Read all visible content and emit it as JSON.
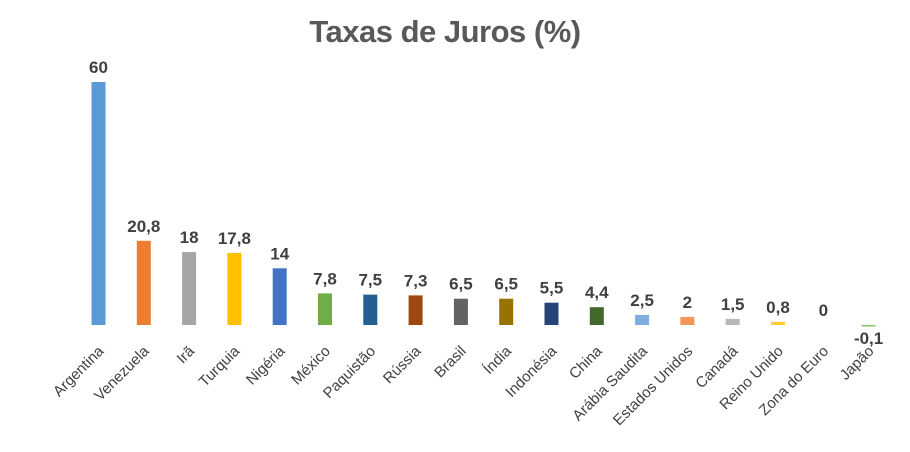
{
  "chart_data": {
    "type": "bar",
    "title": "Taxas de Juros  (%)",
    "xlabel": "",
    "ylabel": "",
    "categories": [
      "Argentina",
      "Venezuela",
      "Irã",
      "Turquia",
      "Nigéria",
      "México",
      "Paquistão",
      "Rússia",
      "Brasil",
      "Índia",
      "Indonésia",
      "China",
      "Arábia Saudita",
      "Estados Unidos",
      "Canadá",
      "Reino Unido",
      "Zona do Euro",
      "Japão"
    ],
    "values": [
      60,
      20.8,
      18,
      17.8,
      14,
      7.8,
      7.5,
      7.3,
      6.5,
      6.5,
      5.5,
      4.4,
      2.5,
      2,
      1.5,
      0.8,
      0,
      -0.1
    ],
    "value_labels": [
      "60",
      "20,8",
      "18",
      "17,8",
      "14",
      "7,8",
      "7,5",
      "7,3",
      "6,5",
      "6,5",
      "5,5",
      "4,4",
      "2,5",
      "2",
      "1,5",
      "0,8",
      "0",
      "-0,1"
    ],
    "colors": [
      "#5B9BD5",
      "#ED7D31",
      "#A5A5A5",
      "#FFC000",
      "#4472C4",
      "#70AD47",
      "#255E91",
      "#9E480E",
      "#636363",
      "#997300",
      "#264478",
      "#43682B",
      "#7CAFDD",
      "#F1975A",
      "#B7B7B7",
      "#FFCD33",
      "#698ED0",
      "#8CC168"
    ],
    "ylim": [
      -0.1,
      60
    ],
    "grid": false,
    "legend": "none"
  }
}
